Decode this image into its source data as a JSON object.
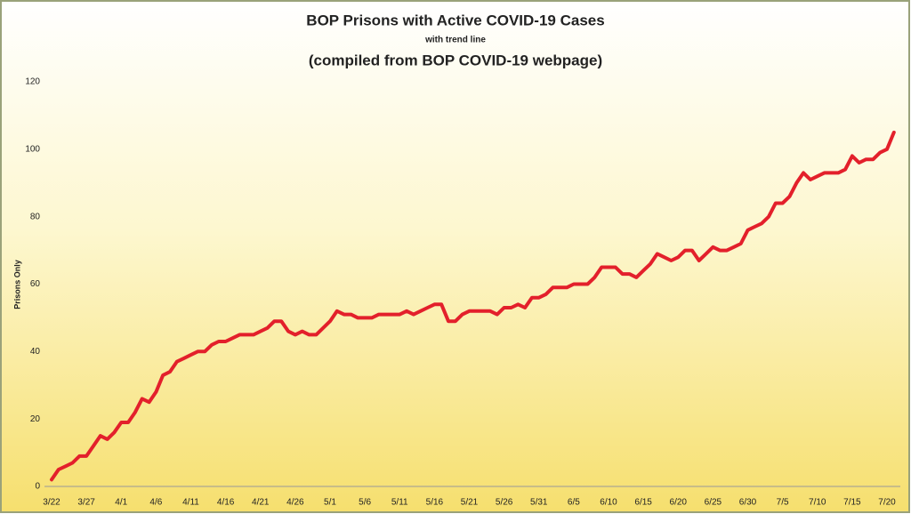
{
  "chart_data": {
    "type": "line",
    "title": "BOP Prisons with Active COVID-19 Cases",
    "subtitle": "with trend line",
    "note": "(compiled from BOP COVID-19 webpage)",
    "y_label": "Prisons Only",
    "categories": [
      "3/22",
      null,
      null,
      null,
      null,
      "3/27",
      null,
      null,
      null,
      null,
      "4/1",
      null,
      null,
      null,
      null,
      "4/6",
      null,
      null,
      null,
      null,
      "4/11",
      null,
      null,
      null,
      null,
      "4/16",
      null,
      null,
      null,
      null,
      "4/21",
      null,
      null,
      null,
      null,
      "4/26",
      null,
      null,
      null,
      null,
      "5/1",
      null,
      null,
      null,
      null,
      "5/6",
      null,
      null,
      null,
      null,
      "5/11",
      null,
      null,
      null,
      null,
      "5/16",
      null,
      null,
      null,
      null,
      "5/21",
      null,
      null,
      null,
      null,
      "5/26",
      null,
      null,
      null,
      null,
      "5/31",
      null,
      null,
      null,
      null,
      "6/5",
      null,
      null,
      null,
      null,
      "6/10",
      null,
      null,
      null,
      null,
      "6/15",
      null,
      null,
      null,
      null,
      "6/20",
      null,
      null,
      null,
      null,
      "6/25",
      null,
      null,
      null,
      null,
      "6/30",
      null,
      null,
      null,
      null,
      "7/5",
      null,
      null,
      null,
      null,
      "7/10",
      null,
      null,
      null,
      null,
      "7/15",
      null,
      null,
      null,
      null,
      "7/20",
      null
    ],
    "series": [
      {
        "name": "Prisons Only",
        "color": "#e3202b",
        "values": [
          2,
          5,
          6,
          7,
          9,
          9,
          12,
          15,
          14,
          16,
          19,
          19,
          22,
          26,
          25,
          28,
          33,
          34,
          37,
          38,
          39,
          40,
          40,
          42,
          43,
          43,
          44,
          45,
          45,
          45,
          46,
          47,
          49,
          49,
          46,
          45,
          46,
          45,
          45,
          47,
          49,
          52,
          51,
          51,
          50,
          50,
          50,
          51,
          51,
          51,
          51,
          52,
          51,
          52,
          53,
          54,
          54,
          49,
          49,
          51,
          52,
          52,
          52,
          52,
          51,
          53,
          53,
          54,
          53,
          56,
          56,
          57,
          59,
          59,
          59,
          60,
          60,
          60,
          62,
          65,
          65,
          65,
          63,
          63,
          62,
          64,
          66,
          69,
          68,
          67,
          68,
          70,
          70,
          67,
          69,
          71,
          70,
          70,
          71,
          72,
          76,
          77,
          78,
          80,
          84,
          84,
          86,
          90,
          93,
          91,
          92,
          93,
          93,
          93,
          94,
          98,
          96,
          97,
          97,
          99,
          100,
          105
        ]
      }
    ],
    "ylim": [
      0,
      120
    ],
    "yticks": [
      0,
      20,
      40,
      60,
      80,
      100,
      120
    ],
    "grid": false
  }
}
